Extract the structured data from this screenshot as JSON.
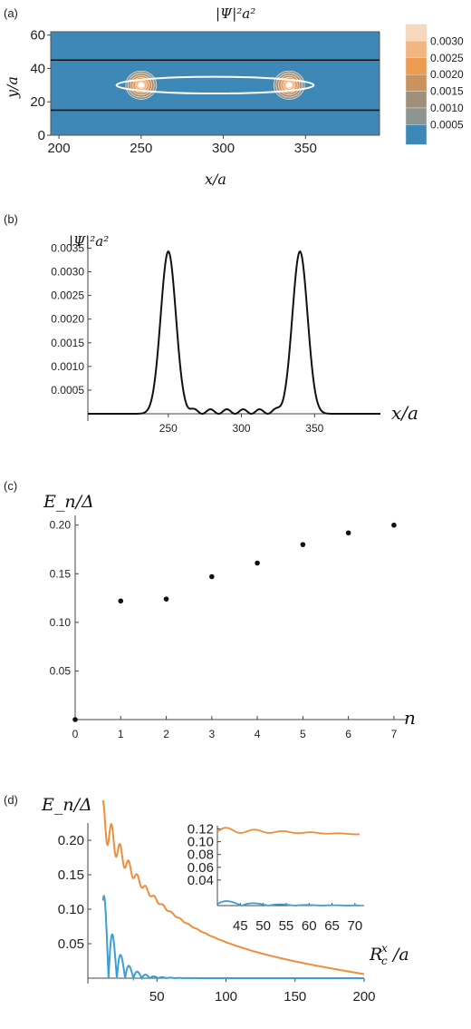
{
  "panels": {
    "a": {
      "label": "(a)",
      "title": "|Ψ|²a²",
      "xlabel": "x/a",
      "ylabel": "y/a"
    },
    "b": {
      "label": "(b)",
      "ylabel": "|Ψ|²a²",
      "xlabel": "x/a"
    },
    "c": {
      "label": "(c)",
      "ylabel": "E_n/Δ",
      "xlabel": "n"
    },
    "d": {
      "label": "(d)",
      "ylabel": "E_n/Δ",
      "xlabel": "R_c^x/a"
    }
  },
  "chart_data": [
    {
      "type": "heatmap",
      "title": "|Ψ|²a²",
      "xlabel": "x/a",
      "ylabel": "y/a",
      "xlim": [
        195,
        395
      ],
      "ylim": [
        0,
        62
      ],
      "xticks": [
        200,
        250,
        300,
        350
      ],
      "yticks": [
        0,
        20,
        40,
        60
      ],
      "background_color": "#3e88b8",
      "legend": {
        "placement": "right",
        "labels": [
          "0.0030",
          "0.0025",
          "0.0020",
          "0.0015",
          "0.0010",
          "0.0005"
        ],
        "colors": [
          "#f6d8bd",
          "#f2b683",
          "#ee9a4f",
          "#ca925c",
          "#a08f7a",
          "#8d9590",
          "#3e88b8"
        ]
      },
      "lines_y": [
        45,
        15
      ],
      "ellipse": {
        "cx": 295,
        "cy": 30,
        "rx": 60,
        "ry": 5
      },
      "peaks": [
        {
          "x": 250,
          "y": 30
        },
        {
          "x": 340,
          "y": 30
        }
      ]
    },
    {
      "type": "line",
      "ylabel": "|Ψ|²a²",
      "xlabel": "x/a",
      "xlim": [
        195,
        395
      ],
      "ylim": [
        0,
        0.0037
      ],
      "xticks": [
        250,
        300,
        350
      ],
      "yticks": [
        "0.0005",
        "0.0010",
        "0.0015",
        "0.0020",
        "0.0025",
        "0.0030",
        "0.0035"
      ],
      "series": [
        {
          "peaks": [
            {
              "x": 250,
              "y": 0.00343,
              "sigma": 5.2
            },
            {
              "x": 340,
              "y": 0.00343,
              "sigma": 5.2
            }
          ],
          "ripple": {
            "from": 262,
            "to": 329,
            "amplitude": 9.5e-05,
            "period": 11.2
          }
        }
      ]
    },
    {
      "type": "scatter",
      "ylabel": "E_n/Δ",
      "xlabel": "n",
      "xlim": [
        0,
        7.3
      ],
      "ylim": [
        0,
        0.21
      ],
      "xticks": [
        0,
        1,
        2,
        3,
        4,
        5,
        6,
        7
      ],
      "yticks": [
        "0.05",
        "0.10",
        "0.15",
        "0.20"
      ],
      "x": [
        0,
        1,
        2,
        3,
        4,
        5,
        6,
        7
      ],
      "y": [
        0.0,
        0.122,
        0.124,
        0.147,
        0.161,
        0.18,
        0.192,
        0.2
      ]
    },
    {
      "type": "line",
      "ylabel": "E_n/Δ",
      "xlabel": "R_c^x/a",
      "xlim": [
        0,
        200
      ],
      "ylim": [
        0,
        0.225
      ],
      "xticks": [
        50,
        100,
        150,
        200
      ],
      "yticks": [
        "0.05",
        "0.10",
        "0.15",
        "0.20"
      ],
      "series": [
        {
          "color": "#ee8e3a",
          "x_start": 11,
          "x_end": 200
        },
        {
          "color": "#3c9fd4",
          "x_start": 11,
          "x_end": 200
        }
      ],
      "inset": {
        "xlim": [
          40,
          72
        ],
        "ylim": [
          0,
          0.125
        ],
        "xticks": [
          45,
          50,
          55,
          60,
          65,
          70
        ],
        "yticks": [
          "0.04",
          "0.06",
          "0.08",
          "0.10",
          "0.12"
        ]
      }
    }
  ]
}
